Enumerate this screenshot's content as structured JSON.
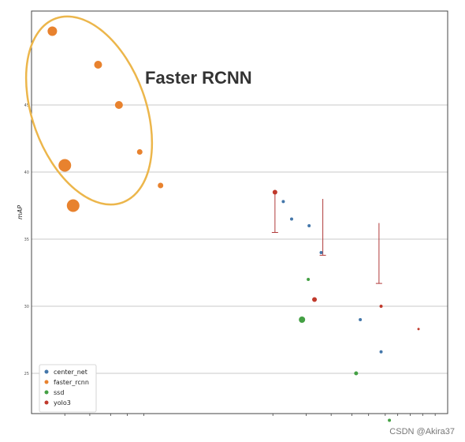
{
  "chart_data": {
    "type": "scatter",
    "ylabel": "mAP",
    "ylim": [
      22,
      52
    ],
    "xlim": [
      0,
      100
    ],
    "yticks": [
      25,
      30,
      35,
      40,
      45
    ],
    "ytick_labels": [
      "25",
      "30",
      "35",
      "40",
      "45"
    ],
    "grid": true,
    "legend_position": "bottom-left",
    "annotation": "Faster RCNN",
    "series": [
      {
        "name": "center_net",
        "color": "#4477aa",
        "points": [
          {
            "x": 60.5,
            "y": 37.8,
            "size": 2
          },
          {
            "x": 62.5,
            "y": 36.5,
            "size": 2
          },
          {
            "x": 66.7,
            "y": 36.0,
            "size": 2
          },
          {
            "x": 69.6,
            "y": 34.0,
            "size": 2
          },
          {
            "x": 79.0,
            "y": 29.0,
            "size": 2
          },
          {
            "x": 84.0,
            "y": 26.6,
            "size": 2
          }
        ]
      },
      {
        "name": "faster_rcnn",
        "color": "#e8822e",
        "points": [
          {
            "x": 5.0,
            "y": 50.5,
            "size": 6
          },
          {
            "x": 16.0,
            "y": 48.0,
            "size": 5
          },
          {
            "x": 21.0,
            "y": 45.0,
            "size": 5
          },
          {
            "x": 26.0,
            "y": 41.5,
            "size": 3.5
          },
          {
            "x": 8.0,
            "y": 40.5,
            "size": 8
          },
          {
            "x": 31.0,
            "y": 39.0,
            "size": 3.5
          },
          {
            "x": 10.0,
            "y": 37.5,
            "size": 8
          }
        ]
      },
      {
        "name": "ssd",
        "color": "#44a044",
        "points": [
          {
            "x": 66.5,
            "y": 32.0,
            "size": 2
          },
          {
            "x": 65.0,
            "y": 29.0,
            "size": 4
          },
          {
            "x": 78.0,
            "y": 25.0,
            "size": 2.5
          },
          {
            "x": 86.0,
            "y": 21.5,
            "size": 2
          }
        ]
      },
      {
        "name": "yolo3",
        "color": "#c0392b",
        "points": [
          {
            "x": 58.5,
            "y": 38.5,
            "size": 3
          },
          {
            "x": 68.0,
            "y": 30.5,
            "size": 3
          },
          {
            "x": 84.0,
            "y": 30.0,
            "size": 2
          },
          {
            "x": 93.0,
            "y": 28.3,
            "size": 1.5
          }
        ]
      }
    ],
    "error_bars": [
      {
        "x": 58.5,
        "y_top": 38.5,
        "y_bottom": 35.5,
        "color": "#b03a3a"
      },
      {
        "x": 70.0,
        "y_top": 38.0,
        "y_bottom": 33.8,
        "color": "#b03a3a"
      },
      {
        "x": 83.5,
        "y_top": 36.2,
        "y_bottom": 31.7,
        "color": "#b03a3a"
      }
    ]
  },
  "watermark": "CSDN @Akira37"
}
